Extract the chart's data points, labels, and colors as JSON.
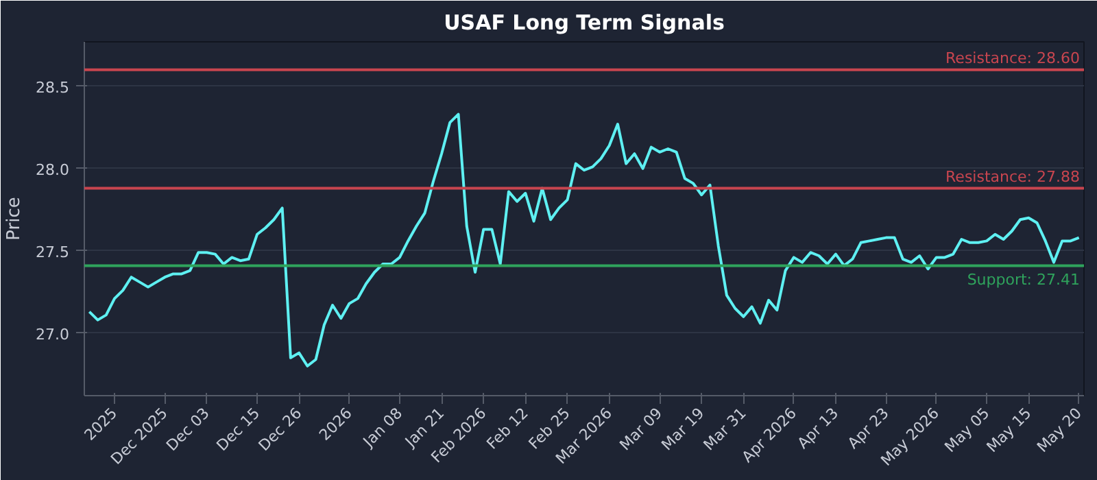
{
  "chart_data": {
    "type": "line",
    "title": "USAF Long Term Signals",
    "ylabel": "Price",
    "categories": [
      null,
      null,
      null,
      "2025",
      null,
      null,
      null,
      null,
      null,
      "Dec 2025",
      null,
      null,
      null,
      null,
      "Dec 03",
      null,
      null,
      null,
      null,
      null,
      "Dec 15",
      null,
      null,
      null,
      null,
      "Dec 26",
      null,
      null,
      null,
      null,
      null,
      "2026",
      null,
      null,
      null,
      null,
      null,
      "Jan 08",
      null,
      null,
      null,
      null,
      "Jan 21",
      null,
      null,
      null,
      null,
      "Feb 2026",
      null,
      null,
      null,
      null,
      "Feb 12",
      null,
      null,
      null,
      null,
      "Feb 25",
      null,
      null,
      null,
      null,
      "Mar 2026",
      null,
      null,
      null,
      null,
      null,
      "Mar 09",
      null,
      null,
      null,
      null,
      "Mar 19",
      null,
      null,
      null,
      null,
      "Mar 31",
      null,
      null,
      null,
      null,
      null,
      "Apr 2026",
      null,
      null,
      null,
      null,
      "Apr 13",
      null,
      null,
      null,
      null,
      null,
      "Apr 23",
      null,
      null,
      null,
      null,
      null,
      "May 2026",
      null,
      null,
      null,
      null,
      null,
      "May 05",
      null,
      null,
      null,
      null,
      "May 15",
      null,
      null,
      null,
      null,
      null,
      "May 20"
    ],
    "series": [
      {
        "color": "#5ef0f2",
        "values": [
          27.13,
          27.08,
          27.11,
          27.21,
          27.26,
          27.34,
          27.31,
          27.28,
          27.31,
          27.34,
          27.36,
          27.36,
          27.38,
          27.49,
          27.49,
          27.48,
          27.42,
          27.46,
          27.44,
          27.45,
          27.6,
          27.64,
          27.69,
          27.76,
          26.85,
          26.88,
          26.8,
          26.84,
          27.05,
          27.17,
          27.09,
          27.18,
          27.21,
          27.3,
          27.37,
          27.42,
          27.42,
          27.46,
          27.56,
          27.65,
          27.73,
          27.92,
          28.09,
          28.28,
          28.33,
          27.65,
          27.37,
          27.63,
          27.63,
          27.42,
          27.86,
          27.8,
          27.85,
          27.68,
          27.88,
          27.69,
          27.76,
          27.81,
          28.03,
          27.99,
          28.01,
          28.06,
          28.14,
          28.27,
          28.03,
          28.09,
          28.0,
          28.13,
          28.1,
          28.12,
          28.1,
          27.94,
          27.91,
          27.84,
          27.9,
          27.53,
          27.23,
          27.15,
          27.1,
          27.16,
          27.06,
          27.2,
          27.14,
          27.38,
          27.46,
          27.43,
          27.49,
          27.47,
          27.42,
          27.48,
          27.41,
          27.45,
          27.55,
          27.56,
          27.57,
          27.58,
          27.58,
          27.45,
          27.43,
          27.47,
          27.39,
          27.46,
          27.46,
          27.48,
          27.57,
          27.55,
          27.55,
          27.56,
          27.6,
          27.57,
          27.62,
          27.69,
          27.7,
          27.67,
          27.56,
          27.43,
          27.56,
          27.56,
          27.58
        ]
      }
    ],
    "ylim": [
      26.62,
      28.77
    ],
    "yticks": [
      {
        "value": 27.0,
        "label": "27.0"
      },
      {
        "value": 27.5,
        "label": "27.5"
      },
      {
        "value": 28.0,
        "label": "28.0"
      },
      {
        "value": 28.5,
        "label": "28.5"
      }
    ],
    "ref_lines": [
      {
        "axis": "y",
        "value": 28.6,
        "label": "Resistance: 28.60",
        "color": "#c8454f"
      },
      {
        "axis": "y",
        "value": 27.88,
        "label": "Resistance: 27.88",
        "color": "#c8454f"
      },
      {
        "axis": "y",
        "value": 27.41,
        "label": "Support: 27.41",
        "color": "#2fa35c"
      }
    ],
    "grid": "y",
    "line_style": "solid"
  }
}
